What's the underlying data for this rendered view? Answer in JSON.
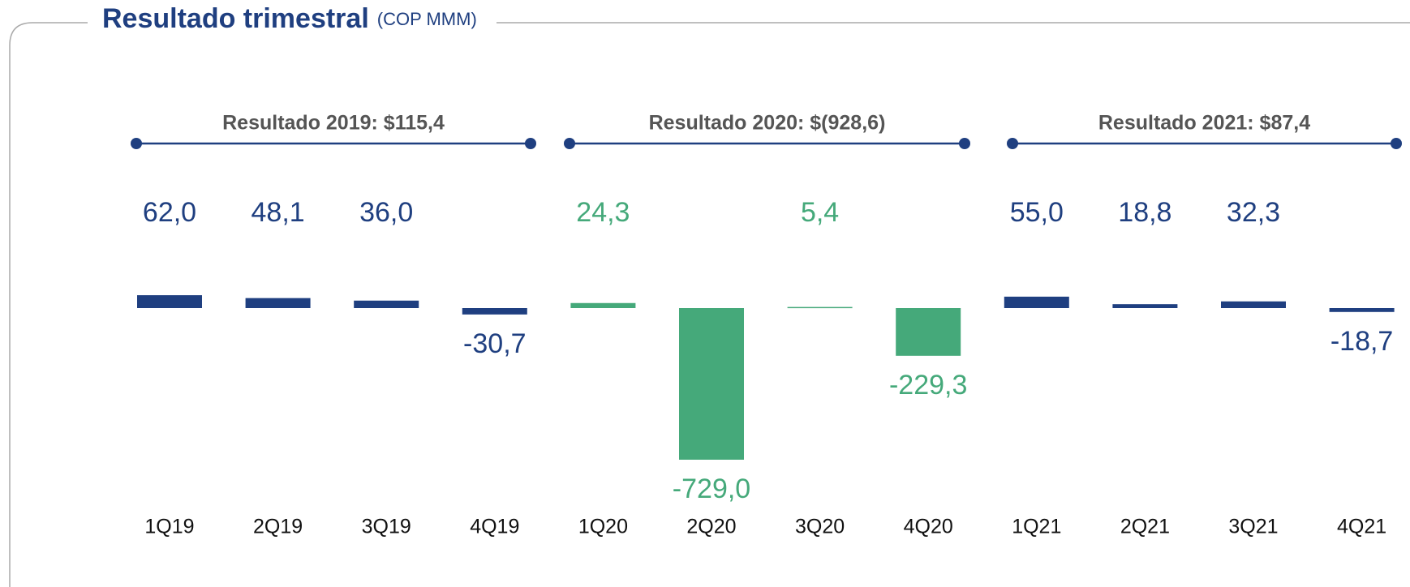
{
  "chart_data": {
    "type": "bar",
    "title": "Resultado trimestral",
    "subtitle": "(COP MMM)",
    "categories": [
      "1Q19",
      "2Q19",
      "3Q19",
      "4Q19",
      "1Q20",
      "2Q20",
      "3Q20",
      "4Q20",
      "1Q21",
      "2Q21",
      "3Q21",
      "4Q21"
    ],
    "values": [
      62.0,
      48.1,
      36.0,
      -30.7,
      24.3,
      -729.0,
      5.4,
      -229.3,
      55.0,
      18.8,
      32.3,
      -18.7
    ],
    "value_labels": [
      "62,0",
      "48,1",
      "36,0",
      "-30,7",
      "24,3",
      "-729,0",
      "5,4",
      "-229,3",
      "55,0",
      "18,8",
      "32,3",
      "-18,7"
    ],
    "colors": [
      "#1f3f80",
      "#1f3f80",
      "#1f3f80",
      "#1f3f80",
      "#45a97a",
      "#45a97a",
      "#45a97a",
      "#45a97a",
      "#1f3f80",
      "#1f3f80",
      "#1f3f80",
      "#1f3f80"
    ],
    "group_labels": [
      "Resultado 2019: $115,4",
      "Resultado 2020: $(928,6)",
      "Resultado 2021: $87,4"
    ]
  }
}
